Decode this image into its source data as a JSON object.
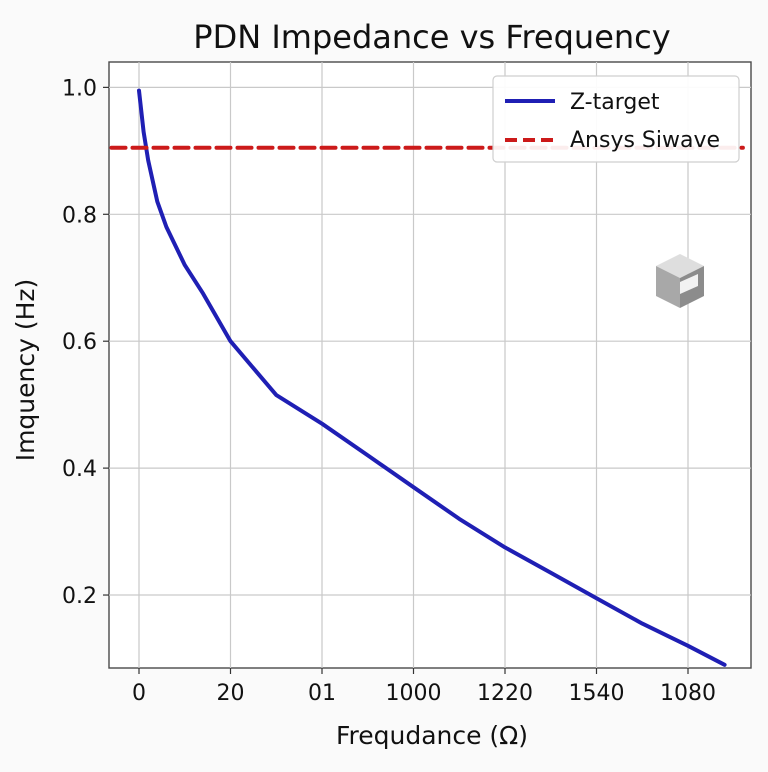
{
  "chart_data": {
    "type": "line",
    "title": "PDN Impedance vs Frequency",
    "xlabel": "Frequdance (Ω)",
    "ylabel": "Imquency (Hz)",
    "x_ticks": [
      "0",
      "20",
      "01",
      "1000",
      "1220",
      "1540",
      "1080"
    ],
    "y_ticks": [
      "0.2",
      "0.4",
      "0.6",
      "0.8",
      "1.0"
    ],
    "ylim": [
      0.085,
      1.04
    ],
    "grid": true,
    "legend_position": "top-right",
    "series": [
      {
        "name": "Z-target",
        "color": "#1f1fb4",
        "style": "solid",
        "x_index": [
          0,
          0.05,
          0.1,
          0.2,
          0.3,
          0.5,
          0.7,
          1,
          1.5,
          2,
          2.5,
          3,
          3.5,
          4,
          4.5,
          5,
          5.5,
          6,
          6.4
        ],
        "y": [
          0.995,
          0.93,
          0.885,
          0.82,
          0.78,
          0.72,
          0.675,
          0.6,
          0.515,
          0.47,
          0.42,
          0.37,
          0.32,
          0.275,
          0.235,
          0.195,
          0.155,
          0.12,
          0.09
        ]
      },
      {
        "name": "Ansys Siwave",
        "color": "#cc1a1a",
        "style": "dashed",
        "x_index": [
          -0.3,
          6.6
        ],
        "y": [
          0.905,
          0.905
        ]
      }
    ]
  }
}
